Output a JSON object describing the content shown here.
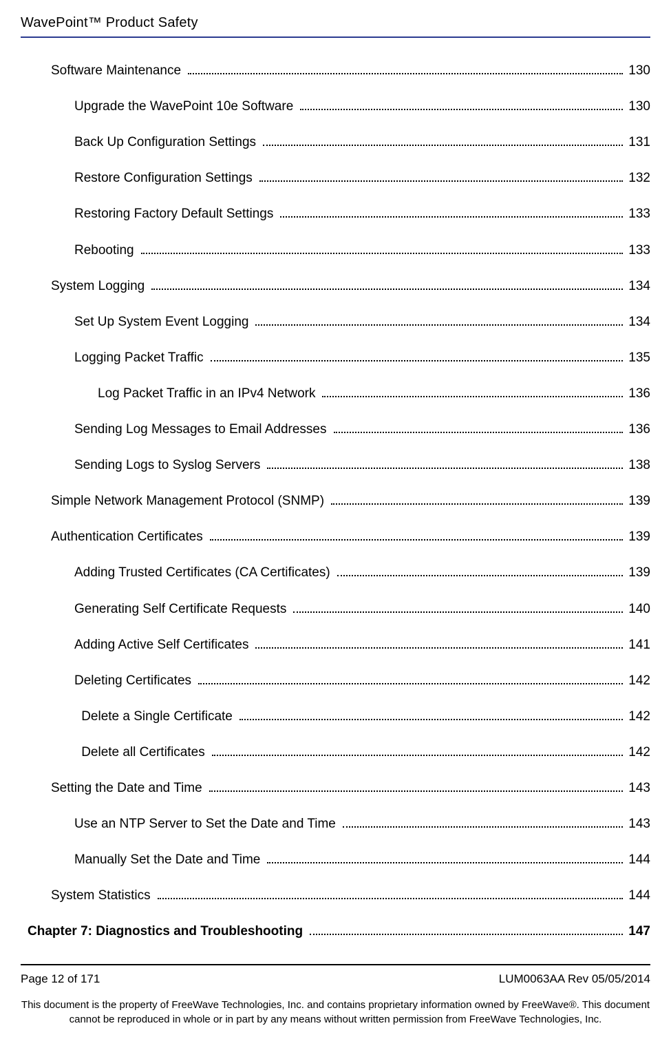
{
  "header": {
    "title": "WavePoint™ Product Safety"
  },
  "toc": [
    {
      "label": "Software Maintenance",
      "page": "130",
      "indent": 1,
      "bold": false
    },
    {
      "label": "Upgrade the WavePoint 10e Software",
      "page": "130",
      "indent": 2,
      "bold": false
    },
    {
      "label": "Back Up Configuration Settings",
      "page": "131",
      "indent": 2,
      "bold": false
    },
    {
      "label": "Restore Configuration Settings",
      "page": "132",
      "indent": 2,
      "bold": false
    },
    {
      "label": "Restoring Factory Default Settings",
      "page": "133",
      "indent": 2,
      "bold": false
    },
    {
      "label": "Rebooting",
      "page": "133",
      "indent": 2,
      "bold": false
    },
    {
      "label": "System Logging",
      "page": "134",
      "indent": 1,
      "bold": false
    },
    {
      "label": "Set Up System Event Logging",
      "page": "134",
      "indent": 2,
      "bold": false
    },
    {
      "label": "Logging Packet Traffic",
      "page": "135",
      "indent": 2,
      "bold": false
    },
    {
      "label": "Log Packet Traffic in an IPv4 Network",
      "page": "136",
      "indent": 3,
      "bold": false
    },
    {
      "label": "Sending Log Messages to Email Addresses",
      "page": "136",
      "indent": 2,
      "bold": false
    },
    {
      "label": "Sending Logs to Syslog Servers",
      "page": "138",
      "indent": 2,
      "bold": false
    },
    {
      "label": "Simple Network Management Protocol (SNMP)",
      "page": "139",
      "indent": 1,
      "bold": false
    },
    {
      "label": "Authentication Certificates",
      "page": "139",
      "indent": 1,
      "bold": false
    },
    {
      "label": "Adding Trusted Certificates (CA Certificates)",
      "page": "139",
      "indent": 2,
      "bold": false
    },
    {
      "label": "Generating Self Certificate Requests",
      "page": "140",
      "indent": 2,
      "bold": false
    },
    {
      "label": "Adding Active Self Certificates",
      "page": "141",
      "indent": 2,
      "bold": false
    },
    {
      "label": "Deleting Certificates",
      "page": "142",
      "indent": 2,
      "bold": false
    },
    {
      "label": "Delete a Single Certificate",
      "page": "142",
      "indent": 2.3,
      "bold": false
    },
    {
      "label": "Delete all Certificates",
      "page": "142",
      "indent": 2.3,
      "bold": false
    },
    {
      "label": "Setting the Date and Time",
      "page": "143",
      "indent": 1,
      "bold": false
    },
    {
      "label": "Use an NTP Server to Set the Date and Time",
      "page": "143",
      "indent": 2,
      "bold": false
    },
    {
      "label": "Manually Set the Date and Time",
      "page": "144",
      "indent": 2,
      "bold": false
    },
    {
      "label": "System Statistics",
      "page": "144",
      "indent": 1,
      "bold": false
    },
    {
      "label": "Chapter 7: Diagnostics and Troubleshooting",
      "page": "147",
      "indent": 0,
      "bold": true
    }
  ],
  "indentStepPx": 34,
  "baseIndentPx": 10,
  "footer": {
    "left": "Page 12 of 171",
    "right": "LUM0063AA Rev 05/05/2014",
    "legal": "This document is the property of FreeWave Technologies, Inc. and contains proprietary information owned by FreeWave®. This document cannot be reproduced in whole or in part by any means without written permission from FreeWave Technologies, Inc."
  }
}
